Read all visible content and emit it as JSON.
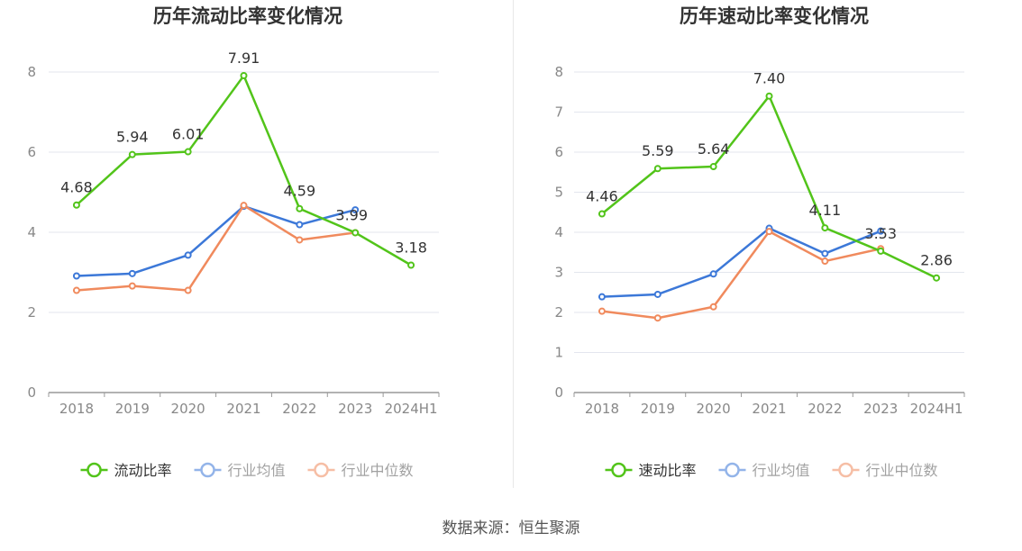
{
  "colors": {
    "primary": "#52c41a",
    "avg": "#3c78d8",
    "median": "#f08a5d",
    "grid": "#e3e6ee",
    "axis": "#999999",
    "tick_text": "#888888",
    "label_text": "#333333"
  },
  "source_label": "数据来源：恒生聚源",
  "chart_data": [
    {
      "type": "line",
      "title": "历年流动比率变化情况",
      "categories": [
        "2018",
        "2019",
        "2020",
        "2021",
        "2022",
        "2023",
        "2024H1"
      ],
      "ylim": [
        0,
        8
      ],
      "yticks": [
        0,
        2,
        4,
        6,
        8
      ],
      "grid": true,
      "legend": "bottom",
      "series": [
        {
          "name": "流动比率",
          "role": "primary",
          "values": [
            4.68,
            5.94,
            6.01,
            7.91,
            4.59,
            3.99,
            3.18
          ],
          "labels": [
            "4.68",
            "5.94",
            "6.01",
            "7.91",
            "4.59",
            "3.99",
            "3.18"
          ]
        },
        {
          "name": "行业均值",
          "role": "avg",
          "values": [
            2.91,
            2.97,
            3.43,
            4.65,
            4.19,
            4.56,
            null
          ]
        },
        {
          "name": "行业中位数",
          "role": "median",
          "values": [
            2.55,
            2.66,
            2.55,
            4.67,
            3.81,
            3.99,
            null
          ]
        }
      ]
    },
    {
      "type": "line",
      "title": "历年速动比率变化情况",
      "categories": [
        "2018",
        "2019",
        "2020",
        "2021",
        "2022",
        "2023",
        "2024H1"
      ],
      "ylim": [
        0,
        8
      ],
      "yticks": [
        0,
        1,
        2,
        3,
        4,
        5,
        6,
        7,
        8
      ],
      "grid": true,
      "legend": "bottom",
      "series": [
        {
          "name": "速动比率",
          "role": "primary",
          "values": [
            4.46,
            5.59,
            5.64,
            7.4,
            4.11,
            3.53,
            2.86
          ],
          "labels": [
            "4.46",
            "5.59",
            "5.64",
            "7.40",
            "4.11",
            "3.53",
            "2.86"
          ]
        },
        {
          "name": "行业均值",
          "role": "avg",
          "values": [
            2.39,
            2.45,
            2.96,
            4.1,
            3.47,
            4.03,
            null
          ]
        },
        {
          "name": "行业中位数",
          "role": "median",
          "values": [
            2.03,
            1.86,
            2.14,
            4.02,
            3.28,
            3.59,
            null
          ]
        }
      ]
    }
  ]
}
